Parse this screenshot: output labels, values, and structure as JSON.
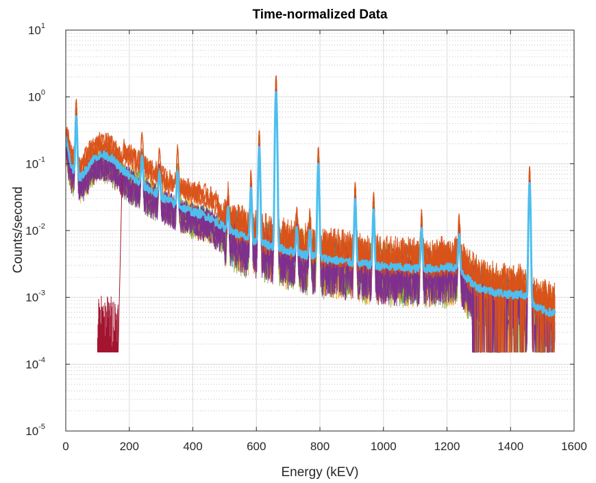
{
  "chart_data": {
    "type": "line",
    "title": "Time-normalized Data",
    "xlabel": "Energy (kEV)",
    "ylabel": "Counts/second",
    "xlim": [
      0,
      1600
    ],
    "ylim": [
      1e-05,
      10
    ],
    "yscale": "log",
    "grid": true,
    "minor_grid": true,
    "legend": "none",
    "x_ticks": [
      0,
      200,
      400,
      600,
      800,
      1000,
      1200,
      1400,
      1600
    ],
    "y_ticks": [
      {
        "base": "10",
        "exp": "-5",
        "value": 1e-05
      },
      {
        "base": "10",
        "exp": "-4",
        "value": 0.0001
      },
      {
        "base": "10",
        "exp": "-3",
        "value": 0.001
      },
      {
        "base": "10",
        "exp": "-2",
        "value": 0.01
      },
      {
        "base": "10",
        "exp": "-1",
        "value": 0.1
      },
      {
        "base": "10",
        "exp": "0",
        "value": 1
      },
      {
        "base": "10",
        "exp": "1",
        "value": 10
      }
    ],
    "background_spectrum": {
      "x": [
        0,
        5,
        15,
        30,
        45,
        60,
        80,
        100,
        120,
        140,
        160,
        180,
        200,
        250,
        300,
        350,
        400,
        450,
        500,
        550,
        600,
        650,
        700,
        750,
        800,
        850,
        900,
        950,
        1000,
        1050,
        1100,
        1150,
        1200,
        1240,
        1260,
        1280,
        1300,
        1350,
        1400,
        1440,
        1460,
        1480,
        1500,
        1520,
        1540
      ],
      "y": [
        0.25,
        0.18,
        0.1,
        0.07,
        0.062,
        0.075,
        0.11,
        0.13,
        0.135,
        0.125,
        0.1,
        0.08,
        0.066,
        0.045,
        0.032,
        0.024,
        0.019,
        0.016,
        0.011,
        0.0085,
        0.0068,
        0.0058,
        0.005,
        0.0044,
        0.0039,
        0.0036,
        0.0033,
        0.0031,
        0.0029,
        0.0028,
        0.0027,
        0.0027,
        0.0028,
        0.0028,
        0.002,
        0.0016,
        0.0014,
        0.0012,
        0.0011,
        0.0011,
        0.00095,
        0.0007,
        0.00065,
        0.0006,
        0.00058
      ]
    },
    "peaks": [
      {
        "x": 33,
        "y": 0.85
      },
      {
        "x": 240,
        "y": 0.16
      },
      {
        "x": 295,
        "y": 0.08
      },
      {
        "x": 352,
        "y": 0.1
      },
      {
        "x": 511,
        "y": 0.025
      },
      {
        "x": 583,
        "y": 0.065
      },
      {
        "x": 609,
        "y": 0.32
      },
      {
        "x": 662,
        "y": 2.2
      },
      {
        "x": 727,
        "y": 0.013
      },
      {
        "x": 768,
        "y": 0.012
      },
      {
        "x": 795,
        "y": 0.18
      },
      {
        "x": 911,
        "y": 0.05
      },
      {
        "x": 969,
        "y": 0.033
      },
      {
        "x": 1120,
        "y": 0.015
      },
      {
        "x": 1238,
        "y": 0.011
      },
      {
        "x": 1460,
        "y": 0.095
      }
    ],
    "series": [
      {
        "color": "#4DBEEE",
        "role": "mean"
      },
      {
        "color": "#D95319",
        "role": "upper"
      },
      {
        "color": "#7E2F8E",
        "role": "lower"
      },
      {
        "color": "#A2142F",
        "role": "low-energy-cutoff"
      },
      {
        "color": "#EDB120",
        "role": "noise"
      },
      {
        "color": "#77AC30",
        "role": "noise"
      },
      {
        "color": "#0072BD",
        "role": "noise"
      }
    ],
    "low_energy_cluster": {
      "x_range": [
        100,
        165
      ],
      "y_range": [
        0.00015,
        0.0011
      ]
    },
    "floor_value": 0.00015
  }
}
